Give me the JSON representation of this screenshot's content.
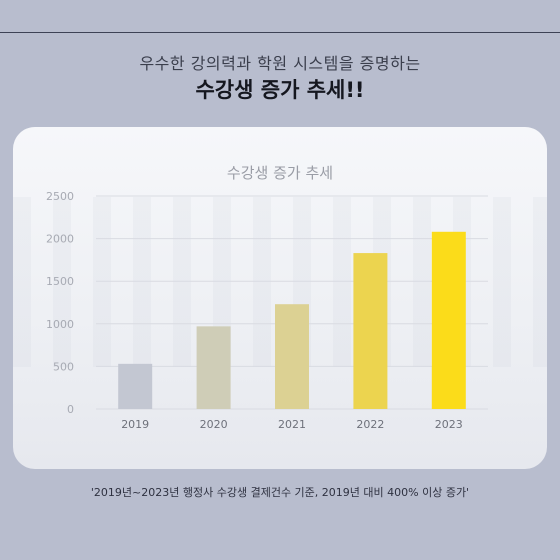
{
  "page": {
    "subtitle": "우수한 강의력과 학원 시스템을 증명하는",
    "headline": "수강생 증가 추세!!",
    "footnote": "'2019년~2023년 행정사 수강생 결제건수 기준, 2019년 대비 400% 이상 증가'"
  },
  "chart_data": {
    "type": "bar",
    "title": "수강생 증가 추세",
    "categories": [
      "2019",
      "2020",
      "2021",
      "2022",
      "2023"
    ],
    "values": [
      530,
      970,
      1230,
      1830,
      2080
    ],
    "yticks": [
      0,
      500,
      1000,
      1500,
      2000,
      2500
    ],
    "ylim": [
      0,
      2500
    ],
    "xlabel": "",
    "ylabel": "",
    "grid": true,
    "bar_colors": [
      "#c3c7d2",
      "#cfcdb7",
      "#dcd193",
      "#ecd44f",
      "#fbdc1a"
    ]
  }
}
